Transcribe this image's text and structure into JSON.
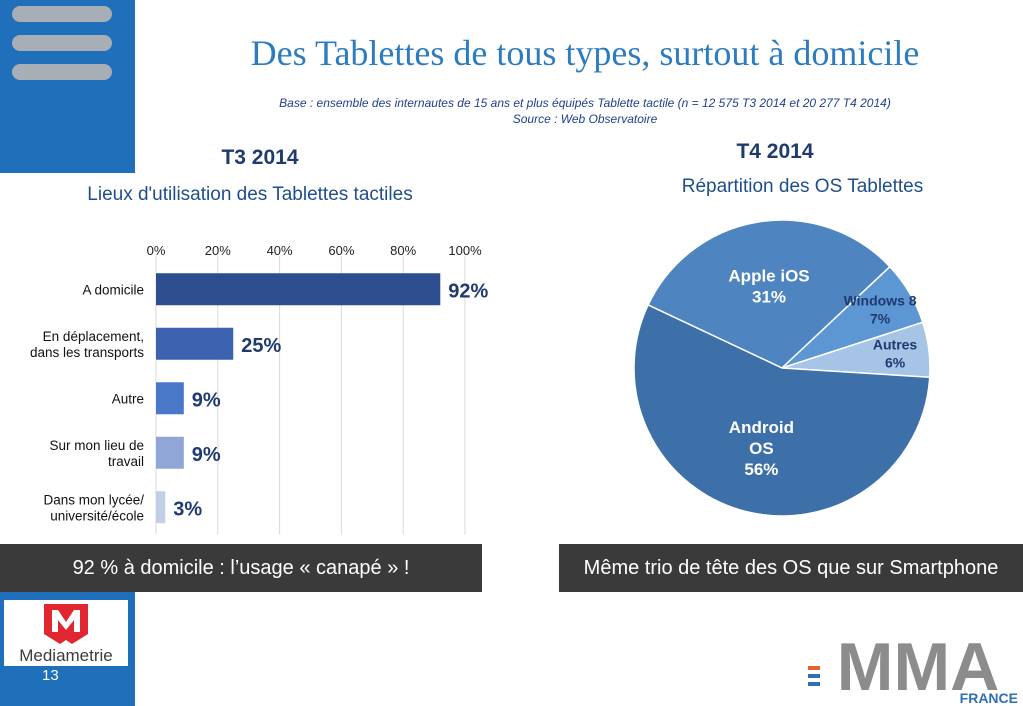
{
  "slide": {
    "title": "Des Tablettes de tous types, surtout à domicile",
    "base_line": "Base : ensemble des internautes de 15 ans et plus équipés Tablette tactile (n = 12 575 T3 2014 et 20 277 T4 2014)",
    "source_line": "Source : Web Observatoire",
    "page_number": "13"
  },
  "colors": {
    "accent_blue": "#1f6fba",
    "title_blue": "#2e7cc0",
    "banner_bg": "#3a3a3a"
  },
  "left": {
    "period": "T3 2014",
    "banner": "92 % à domicile : l’usage « canapé » !"
  },
  "right": {
    "period": "T4 2014",
    "banner": "Même trio de tête des OS que sur Smartphone"
  },
  "logos": {
    "mediametrie": "Mediametrie",
    "mma_main": "MMA",
    "mma_sub": "FRANCE"
  },
  "chart_data": [
    {
      "type": "bar",
      "orientation": "horizontal",
      "title": "Lieux d'utilisation des Tablettes tactiles",
      "categories": [
        [
          "A domicile"
        ],
        [
          "En déplacement,",
          "dans les transports"
        ],
        [
          "Autre"
        ],
        [
          "Sur mon lieu de",
          "travail"
        ],
        [
          "Dans mon lycée/",
          "université/école"
        ]
      ],
      "values": [
        92,
        25,
        9,
        9,
        3
      ],
      "value_labels": [
        "92%",
        "25%",
        "9%",
        "9%",
        "3%"
      ],
      "bar_colors": [
        "#2e4d8f",
        "#3d62b0",
        "#4a78c8",
        "#8fa6d6",
        "#c3cfe9"
      ],
      "xlim": [
        0,
        100
      ],
      "xticks": [
        0,
        20,
        40,
        60,
        80,
        100
      ],
      "xtick_labels": [
        "0%",
        "20%",
        "40%",
        "60%",
        "80%",
        "100%"
      ],
      "grid": true
    },
    {
      "type": "pie",
      "title": "Répartition des OS Tablettes",
      "slices": [
        {
          "label": [
            "Apple iOS",
            "31%"
          ],
          "value": 31,
          "color": "#4e84bf",
          "text_color": "#ffffff"
        },
        {
          "label": [
            "Windows 8",
            "7%"
          ],
          "value": 7,
          "color": "#5c97d3",
          "text_color": "#1f3a6e"
        },
        {
          "label": [
            "Autres",
            "6%"
          ],
          "value": 6,
          "color": "#a6c4e6",
          "text_color": "#1f3a6e"
        },
        {
          "label": [
            "Android",
            "OS",
            "56%"
          ],
          "value": 56,
          "color": "#3d6fa8",
          "text_color": "#ffffff"
        }
      ]
    }
  ]
}
